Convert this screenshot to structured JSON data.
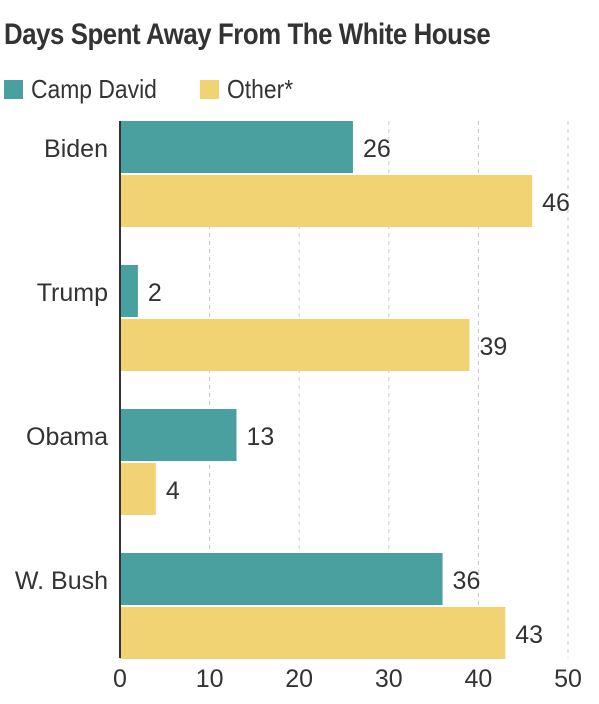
{
  "chart_data": {
    "type": "bar",
    "orientation": "horizontal",
    "title": "Days Spent Away From The White House",
    "categories": [
      "Biden",
      "Trump",
      "Obama",
      "W. Bush"
    ],
    "series": [
      {
        "name": "Camp David",
        "values": [
          26,
          2,
          13,
          36
        ],
        "color": "#4aa09e"
      },
      {
        "name": "Other*",
        "values": [
          46,
          39,
          4,
          43
        ],
        "color": "#f2d373"
      }
    ],
    "xlim": [
      0,
      50
    ],
    "xticks": [
      0,
      10,
      20,
      30,
      40,
      50
    ],
    "xlabel": "",
    "ylabel": "",
    "grid": true,
    "legend_position": "top-left"
  }
}
